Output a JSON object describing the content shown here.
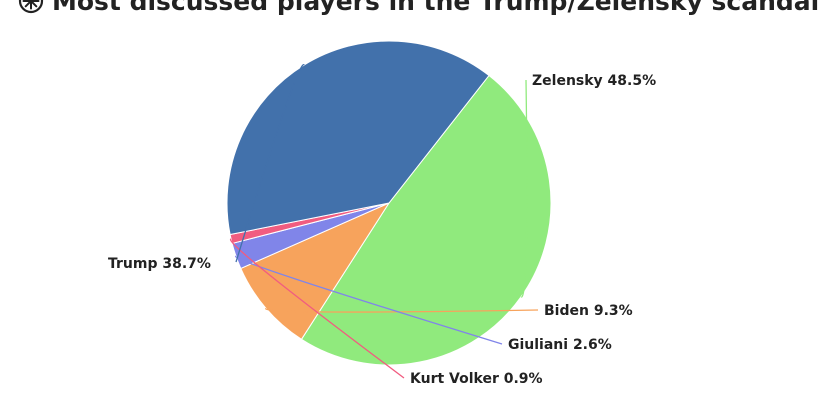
{
  "title": "Most discussed players in the Trump/Zelensky scandal",
  "chart_data": {
    "type": "pie",
    "title": "Most discussed players in the Trump/Zelensky scandal",
    "slices": [
      {
        "label": "Zelensky",
        "value": 48.5,
        "display": "Zelensky 48.5%",
        "color": "#90ea7d"
      },
      {
        "label": "Biden",
        "value": 9.3,
        "display": "Biden 9.3%",
        "color": "#f7a35c"
      },
      {
        "label": "Giuliani",
        "value": 2.6,
        "display": "Giuliani 2.6%",
        "color": "#8085e9"
      },
      {
        "label": "Kurt Volker",
        "value": 0.9,
        "display": "Kurt Volker 0.9%",
        "color": "#f15c80"
      },
      {
        "label": "Trump",
        "value": 38.7,
        "display": "Trump 38.7%",
        "color": "#4271ab"
      }
    ],
    "start_angle_deg": -51.9,
    "legend": "none"
  }
}
